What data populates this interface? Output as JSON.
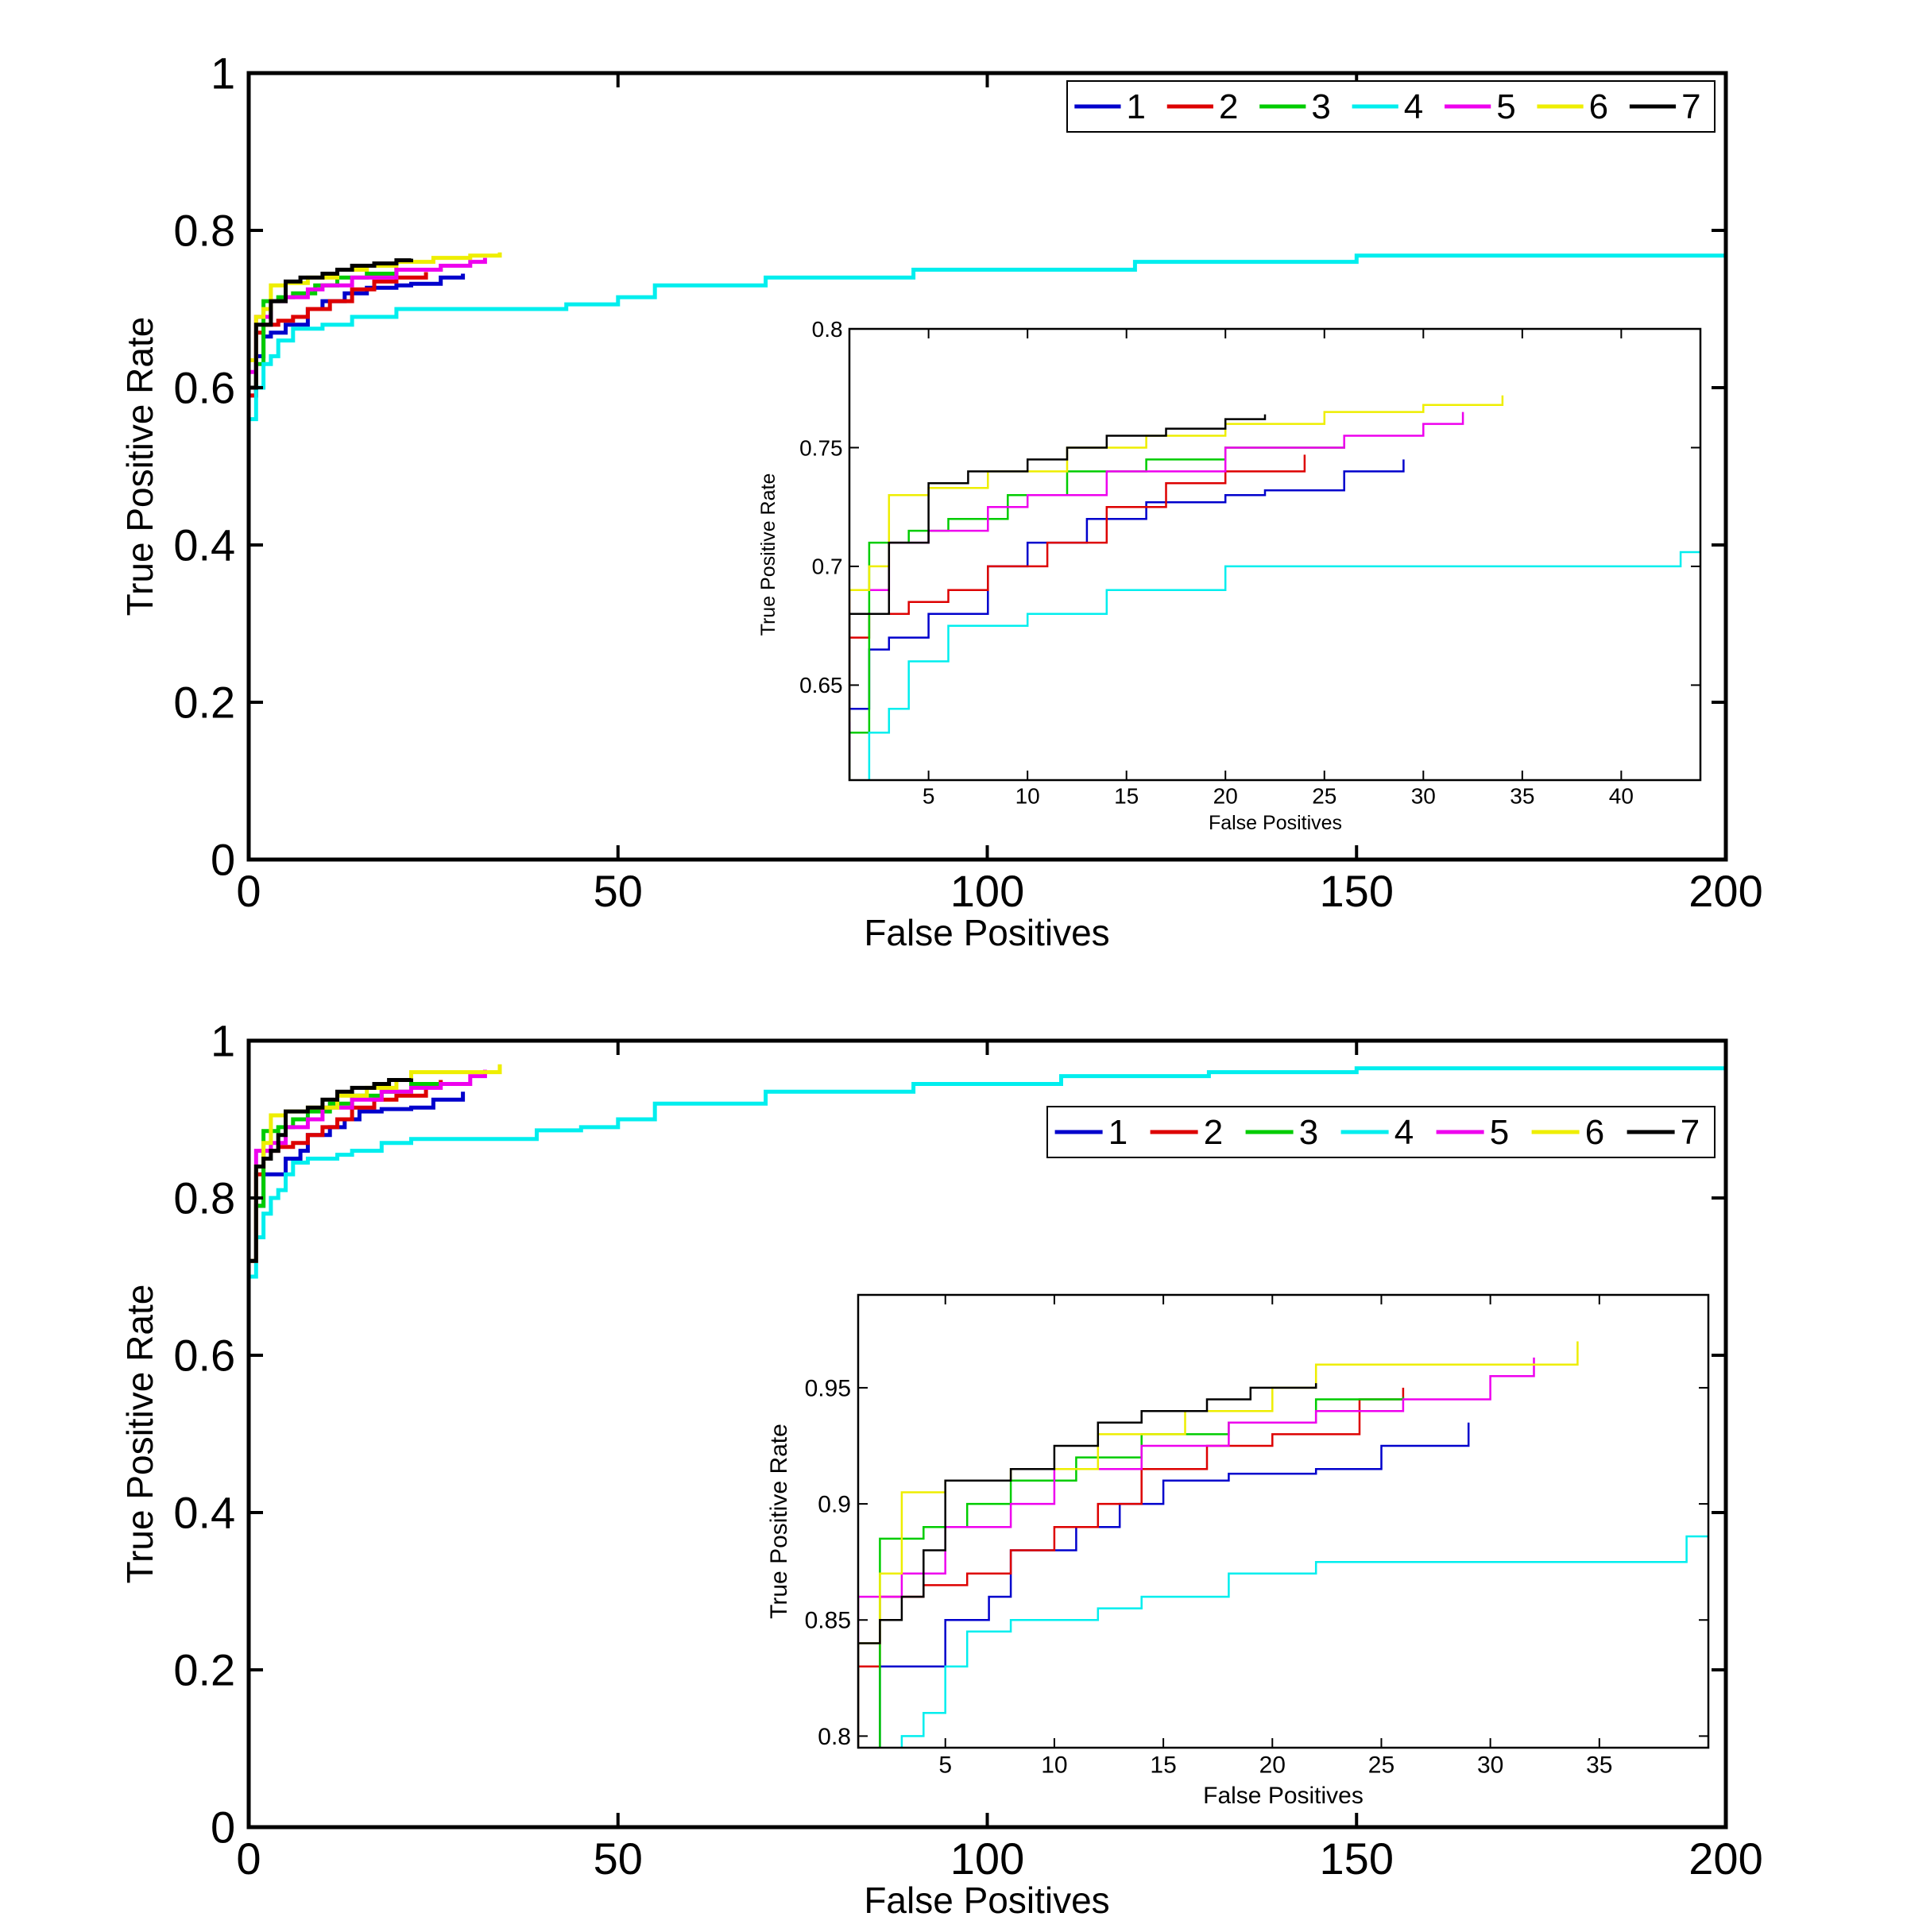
{
  "chart_data": [
    {
      "type": "line",
      "name": "top-main",
      "xlabel": "False Positives",
      "ylabel": "True Positive Rate",
      "xlim": [
        0,
        200
      ],
      "ylim": [
        0,
        1
      ],
      "xticks": [
        0,
        50,
        100,
        150,
        200
      ],
      "yticks": [
        0,
        0.2,
        0.4,
        0.6,
        0.8,
        1
      ],
      "ytick_labels": [
        "0",
        "0.2",
        "0.4",
        "0.6",
        "0.8",
        "1"
      ],
      "legend": "top-right",
      "series": [
        {
          "name": "1",
          "color": "#0000cc",
          "points": [
            [
              0,
              0.59
            ],
            [
              1,
              0.64
            ],
            [
              2,
              0.665
            ],
            [
              3,
              0.67
            ],
            [
              5,
              0.68
            ],
            [
              8,
              0.7
            ],
            [
              10,
              0.71
            ],
            [
              13,
              0.72
            ],
            [
              16,
              0.727
            ],
            [
              20,
              0.73
            ],
            [
              22,
              0.732
            ],
            [
              26,
              0.74
            ],
            [
              29,
              0.745
            ]
          ]
        },
        {
          "name": "2",
          "color": "#dd0000",
          "points": [
            [
              0,
              0.59
            ],
            [
              1,
              0.67
            ],
            [
              2,
              0.68
            ],
            [
              4,
              0.685
            ],
            [
              6,
              0.69
            ],
            [
              8,
              0.7
            ],
            [
              11,
              0.71
            ],
            [
              14,
              0.725
            ],
            [
              17,
              0.735
            ],
            [
              20,
              0.74
            ],
            [
              24,
              0.747
            ]
          ]
        },
        {
          "name": "3",
          "color": "#00cc00",
          "points": [
            [
              0,
              0.6
            ],
            [
              1,
              0.63
            ],
            [
              2,
              0.71
            ],
            [
              4,
              0.715
            ],
            [
              6,
              0.72
            ],
            [
              9,
              0.73
            ],
            [
              12,
              0.74
            ],
            [
              16,
              0.745
            ],
            [
              20,
              0.75
            ],
            [
              26,
              0.752
            ]
          ]
        },
        {
          "name": "4",
          "color": "#00eeee",
          "points": [
            [
              0,
              0.56
            ],
            [
              1,
              0.6
            ],
            [
              2,
              0.63
            ],
            [
              3,
              0.64
            ],
            [
              4,
              0.66
            ],
            [
              6,
              0.675
            ],
            [
              10,
              0.68
            ],
            [
              14,
              0.69
            ],
            [
              20,
              0.7
            ],
            [
              35,
              0.7
            ],
            [
              43,
              0.706
            ],
            [
              50,
              0.715
            ],
            [
              55,
              0.73
            ],
            [
              70,
              0.74
            ],
            [
              90,
              0.75
            ],
            [
              120,
              0.76
            ],
            [
              150,
              0.768
            ],
            [
              200,
              0.773
            ]
          ]
        },
        {
          "name": "5",
          "color": "#ee00ee",
          "points": [
            [
              0,
              0.62
            ],
            [
              1,
              0.69
            ],
            [
              3,
              0.71
            ],
            [
              5,
              0.715
            ],
            [
              8,
              0.725
            ],
            [
              10,
              0.73
            ],
            [
              14,
              0.74
            ],
            [
              20,
              0.75
            ],
            [
              26,
              0.755
            ],
            [
              30,
              0.76
            ],
            [
              32,
              0.765
            ]
          ]
        },
        {
          "name": "6",
          "color": "#eeee00",
          "points": [
            [
              0,
              0.635
            ],
            [
              1,
              0.69
            ],
            [
              2,
              0.7
            ],
            [
              3,
              0.73
            ],
            [
              5,
              0.733
            ],
            [
              8,
              0.74
            ],
            [
              12,
              0.75
            ],
            [
              16,
              0.755
            ],
            [
              20,
              0.76
            ],
            [
              25,
              0.765
            ],
            [
              30,
              0.768
            ],
            [
              34,
              0.772
            ]
          ]
        },
        {
          "name": "7",
          "color": "#000000",
          "points": [
            [
              0,
              0.6
            ],
            [
              1,
              0.68
            ],
            [
              3,
              0.71
            ],
            [
              5,
              0.735
            ],
            [
              7,
              0.74
            ],
            [
              10,
              0.745
            ],
            [
              12,
              0.75
            ],
            [
              14,
              0.755
            ],
            [
              17,
              0.758
            ],
            [
              20,
              0.762
            ],
            [
              22,
              0.764
            ]
          ]
        }
      ]
    },
    {
      "type": "line",
      "name": "top-inset",
      "xlabel": "False Positives",
      "ylabel": "True Positive Rate",
      "xlim": [
        1,
        44
      ],
      "ylim": [
        0.61,
        0.8
      ],
      "xticks": [
        5,
        10,
        15,
        20,
        25,
        30,
        35,
        40
      ],
      "yticks": [
        0.65,
        0.7,
        0.75,
        0.8
      ],
      "ytick_labels": [
        "0.65",
        "0.7",
        "0.75",
        "0.8"
      ]
    },
    {
      "type": "line",
      "name": "bottom-main",
      "xlabel": "False Positives",
      "ylabel": "True Positive Rate",
      "xlim": [
        0,
        200
      ],
      "ylim": [
        0,
        1
      ],
      "xticks": [
        0,
        50,
        100,
        150,
        200
      ],
      "yticks": [
        0,
        0.2,
        0.4,
        0.6,
        0.8,
        1
      ],
      "ytick_labels": [
        "0",
        "0.2",
        "0.4",
        "0.6",
        "0.8",
        "1"
      ],
      "legend": "top-right",
      "series": [
        {
          "name": "1",
          "color": "#0000cc",
          "points": [
            [
              0,
              0.72
            ],
            [
              1,
              0.79
            ],
            [
              2,
              0.83
            ],
            [
              4,
              0.83
            ],
            [
              5,
              0.85
            ],
            [
              7,
              0.86
            ],
            [
              8,
              0.88
            ],
            [
              11,
              0.89
            ],
            [
              13,
              0.9
            ],
            [
              15,
              0.91
            ],
            [
              18,
              0.913
            ],
            [
              22,
              0.915
            ],
            [
              25,
              0.925
            ],
            [
              29,
              0.935
            ]
          ]
        },
        {
          "name": "2",
          "color": "#dd0000",
          "points": [
            [
              0,
              0.72
            ],
            [
              1,
              0.83
            ],
            [
              2,
              0.86
            ],
            [
              4,
              0.865
            ],
            [
              6,
              0.87
            ],
            [
              8,
              0.88
            ],
            [
              10,
              0.89
            ],
            [
              12,
              0.9
            ],
            [
              14,
              0.915
            ],
            [
              17,
              0.925
            ],
            [
              20,
              0.93
            ],
            [
              24,
              0.945
            ],
            [
              26,
              0.95
            ]
          ]
        },
        {
          "name": "3",
          "color": "#00cc00",
          "points": [
            [
              0,
              0.72
            ],
            [
              1,
              0.79
            ],
            [
              2,
              0.885
            ],
            [
              4,
              0.89
            ],
            [
              6,
              0.9
            ],
            [
              8,
              0.91
            ],
            [
              11,
              0.92
            ],
            [
              14,
              0.93
            ],
            [
              18,
              0.935
            ],
            [
              22,
              0.945
            ],
            [
              26,
              0.946
            ]
          ]
        },
        {
          "name": "4",
          "color": "#00eeee",
          "points": [
            [
              0,
              0.7
            ],
            [
              1,
              0.75
            ],
            [
              2,
              0.78
            ],
            [
              3,
              0.8
            ],
            [
              4,
              0.81
            ],
            [
              5,
              0.83
            ],
            [
              6,
              0.845
            ],
            [
              8,
              0.85
            ],
            [
              12,
              0.855
            ],
            [
              14,
              0.86
            ],
            [
              18,
              0.87
            ],
            [
              22,
              0.875
            ],
            [
              30,
              0.875
            ],
            [
              39,
              0.886
            ],
            [
              45,
              0.89
            ],
            [
              50,
              0.9
            ],
            [
              55,
              0.92
            ],
            [
              70,
              0.935
            ],
            [
              90,
              0.945
            ],
            [
              110,
              0.955
            ],
            [
              130,
              0.96
            ],
            [
              150,
              0.965
            ],
            [
              200,
              0.975
            ]
          ]
        },
        {
          "name": "5",
          "color": "#ee00ee",
          "points": [
            [
              0,
              0.72
            ],
            [
              1,
              0.86
            ],
            [
              3,
              0.87
            ],
            [
              5,
              0.89
            ],
            [
              8,
              0.9
            ],
            [
              10,
              0.915
            ],
            [
              14,
              0.925
            ],
            [
              18,
              0.935
            ],
            [
              22,
              0.94
            ],
            [
              26,
              0.945
            ],
            [
              30,
              0.955
            ],
            [
              32,
              0.963
            ]
          ]
        },
        {
          "name": "6",
          "color": "#eeee00",
          "points": [
            [
              0,
              0.72
            ],
            [
              1,
              0.84
            ],
            [
              2,
              0.87
            ],
            [
              3,
              0.905
            ],
            [
              5,
              0.91
            ],
            [
              8,
              0.915
            ],
            [
              12,
              0.93
            ],
            [
              16,
              0.94
            ],
            [
              20,
              0.95
            ],
            [
              22,
              0.96
            ],
            [
              28,
              0.96
            ],
            [
              34,
              0.97
            ]
          ]
        },
        {
          "name": "7",
          "color": "#000000",
          "points": [
            [
              0,
              0.72
            ],
            [
              1,
              0.84
            ],
            [
              2,
              0.85
            ],
            [
              3,
              0.86
            ],
            [
              4,
              0.88
            ],
            [
              5,
              0.91
            ],
            [
              8,
              0.915
            ],
            [
              10,
              0.925
            ],
            [
              12,
              0.935
            ],
            [
              14,
              0.94
            ],
            [
              17,
              0.945
            ],
            [
              19,
              0.95
            ],
            [
              22,
              0.952
            ]
          ]
        }
      ]
    },
    {
      "type": "line",
      "name": "bottom-inset",
      "xlabel": "False Positives",
      "ylabel": "True Positive Rate",
      "xlim": [
        1,
        40
      ],
      "ylim": [
        0.795,
        0.99
      ],
      "xticks": [
        5,
        10,
        15,
        20,
        25,
        30,
        35
      ],
      "yticks": [
        0.8,
        0.85,
        0.9,
        0.95
      ],
      "ytick_labels": [
        "0.8",
        "0.85",
        "0.9",
        "0.95"
      ]
    }
  ]
}
